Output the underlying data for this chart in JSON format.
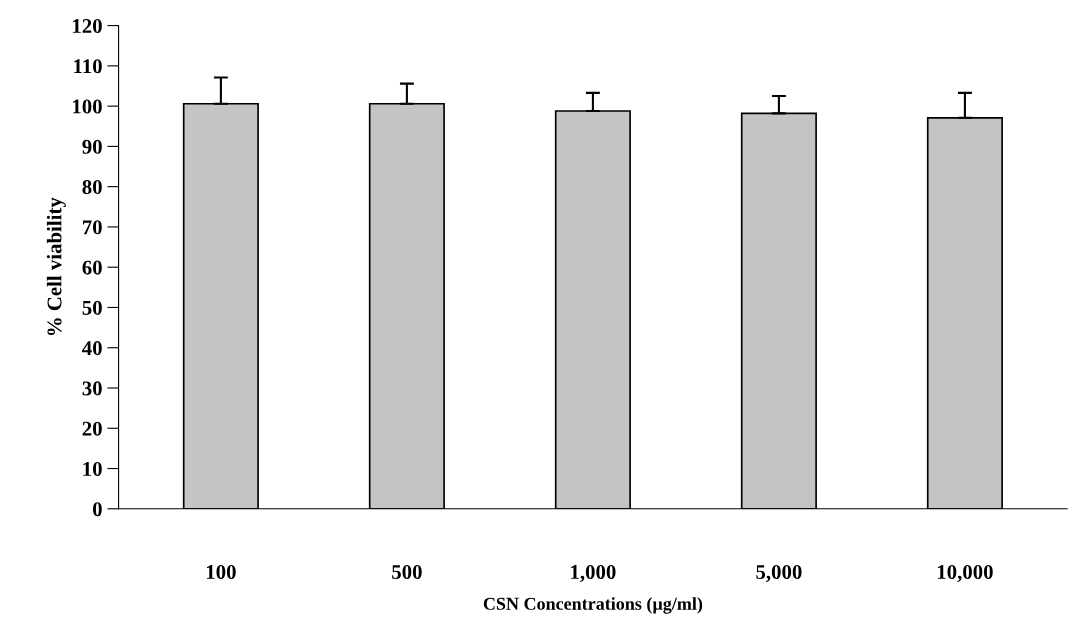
{
  "chart_data": {
    "type": "bar",
    "xlabel": "CSN Concentrations (µg/ml)",
    "ylabel": "% Cell viability",
    "categories": [
      "100",
      "500",
      "1,000",
      "5,000",
      "10,000"
    ],
    "values": [
      100.6,
      100.6,
      98.8,
      98.2,
      97.1
    ],
    "errors": [
      [
        100.6,
        107.1
      ],
      [
        100.6,
        105.6
      ],
      [
        98.8,
        103.3
      ],
      [
        98.2,
        102.5
      ],
      [
        97.1,
        103.3
      ]
    ],
    "color": "#c4c4c4",
    "ylim": [
      0,
      120
    ],
    "yticks": [
      0,
      10,
      20,
      30,
      40,
      50,
      60,
      70,
      80,
      90,
      100,
      110,
      120
    ],
    "grid": false
  }
}
